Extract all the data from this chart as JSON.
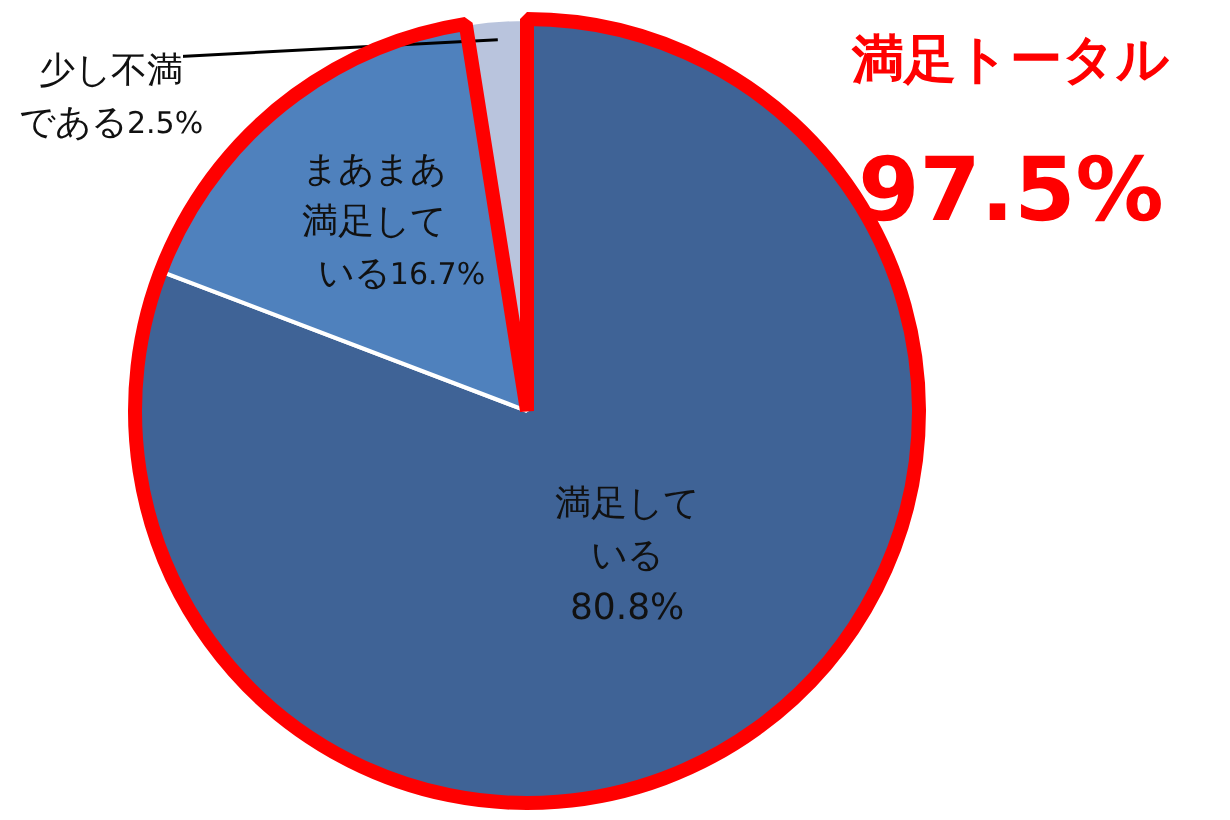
{
  "chart_data": {
    "type": "pie",
    "categories": [
      "満足している",
      "まあまあ満足している",
      "少し不満である"
    ],
    "values": [
      80.8,
      16.7,
      2.5
    ],
    "colors": [
      "#3f6396",
      "#4f81bd",
      "#b9c4dd"
    ],
    "value_labels": [
      "80.8%",
      "16.7%",
      "2.5%"
    ],
    "annotations": [
      "満足トータル",
      "97.5%"
    ]
  }
}
